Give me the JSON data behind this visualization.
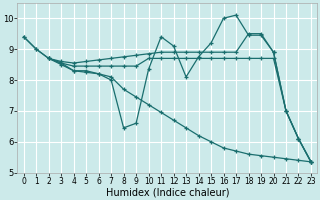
{
  "xlabel": "Humidex (Indice chaleur)",
  "background_color": "#cceaea",
  "grid_color": "#ffffff",
  "line_color": "#1a6e6e",
  "xlim": [
    -0.5,
    23.5
  ],
  "ylim": [
    5,
    10.5
  ],
  "yticks": [
    5,
    6,
    7,
    8,
    9,
    10
  ],
  "xticks": [
    0,
    1,
    2,
    3,
    4,
    5,
    6,
    7,
    8,
    9,
    10,
    11,
    12,
    13,
    14,
    15,
    16,
    17,
    18,
    19,
    20,
    21,
    22,
    23
  ],
  "lines": [
    {
      "x": [
        0,
        1,
        2,
        3,
        4,
        5,
        6,
        7,
        8,
        9,
        10,
        11,
        12,
        13,
        14,
        15,
        16,
        17,
        18,
        19,
        20,
        21,
        22,
        23
      ],
      "y": [
        9.4,
        9.0,
        8.7,
        8.5,
        8.3,
        8.25,
        8.2,
        8.1,
        7.7,
        7.45,
        7.2,
        6.95,
        6.7,
        6.45,
        6.2,
        6.0,
        5.8,
        5.7,
        5.6,
        5.55,
        5.5,
        5.45,
        5.4,
        5.35
      ]
    },
    {
      "x": [
        2,
        3,
        4,
        5,
        6,
        7,
        8,
        9,
        10,
        11,
        12,
        13,
        14,
        15,
        16,
        17,
        18,
        19,
        20,
        21,
        22,
        23
      ],
      "y": [
        8.7,
        8.55,
        8.45,
        8.45,
        8.45,
        8.45,
        8.45,
        8.45,
        8.7,
        8.7,
        8.7,
        8.7,
        8.7,
        8.7,
        8.7,
        8.7,
        8.7,
        8.7,
        8.7,
        7.0,
        6.1,
        5.35
      ]
    },
    {
      "x": [
        0,
        1,
        2,
        3,
        4,
        5,
        6,
        7,
        8,
        9,
        10,
        11,
        12,
        13,
        14,
        15,
        16,
        17,
        18,
        19,
        20,
        21,
        22,
        23
      ],
      "y": [
        9.4,
        9.0,
        8.7,
        8.6,
        8.55,
        8.6,
        8.65,
        8.7,
        8.75,
        8.8,
        8.85,
        8.9,
        8.9,
        8.9,
        8.9,
        8.9,
        8.9,
        8.9,
        9.5,
        9.5,
        8.9,
        7.0,
        6.1,
        5.35
      ]
    },
    {
      "x": [
        2,
        3,
        4,
        5,
        6,
        7,
        8,
        9,
        10,
        11,
        12,
        13,
        14,
        15,
        16,
        17,
        18,
        19,
        20,
        21,
        22,
        23
      ],
      "y": [
        8.7,
        8.55,
        8.3,
        8.3,
        8.2,
        8.0,
        6.45,
        6.6,
        8.35,
        9.4,
        9.1,
        8.1,
        8.75,
        9.2,
        10.0,
        10.1,
        9.45,
        9.45,
        8.9,
        7.0,
        6.1,
        5.35
      ]
    }
  ]
}
